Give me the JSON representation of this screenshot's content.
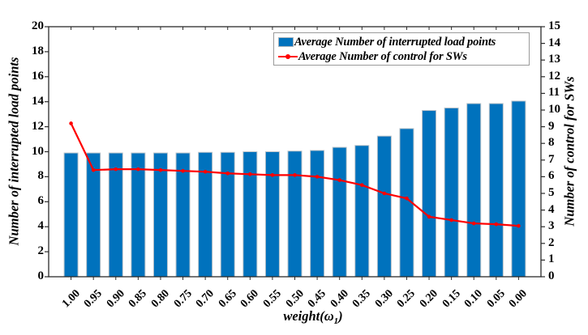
{
  "chart_data": {
    "type": "bar+line",
    "title": "",
    "categories": [
      "1.00",
      "0.95",
      "0.90",
      "0.85",
      "0.80",
      "0.75",
      "0.70",
      "0.65",
      "0.60",
      "0.55",
      "0.50",
      "0.45",
      "0.40",
      "0.35",
      "0.30",
      "0.25",
      "0.20",
      "0.15",
      "0.10",
      "0.05",
      "0.00"
    ],
    "series": [
      {
        "name": "Average Number of interrupted load points",
        "type": "bar",
        "axis": "left",
        "color": "#0072BD",
        "edge_color": "#b9c2c9",
        "values": [
          9.9,
          9.9,
          9.9,
          9.9,
          9.9,
          9.9,
          9.95,
          9.95,
          10.0,
          10.0,
          10.05,
          10.1,
          10.35,
          10.5,
          11.25,
          11.85,
          13.3,
          13.5,
          13.85,
          13.85,
          14.05
        ]
      },
      {
        "name": "Average Number of control for SWs",
        "type": "line",
        "axis": "right",
        "color": "#ff0000",
        "marker": "dot",
        "values": [
          9.2,
          6.4,
          6.45,
          6.45,
          6.4,
          6.35,
          6.3,
          6.2,
          6.15,
          6.1,
          6.1,
          6.0,
          5.8,
          5.5,
          5.0,
          4.7,
          3.6,
          3.4,
          3.2,
          3.15,
          3.05
        ]
      }
    ],
    "left_axis": {
      "label": "Number of interrupted load points",
      "min": 0,
      "max": 20,
      "tick_step": 2
    },
    "right_axis": {
      "label": "Number of control for SWs",
      "min": 0,
      "max": 15,
      "tick_step": 1
    },
    "x_axis": {
      "label_prefix": "weight(ω",
      "label_sub": "1",
      "label_suffix": ")"
    },
    "legend": {
      "position": "top-right"
    },
    "grid": false,
    "axis_color": "#2b2b2b",
    "background": "#ffffff"
  }
}
